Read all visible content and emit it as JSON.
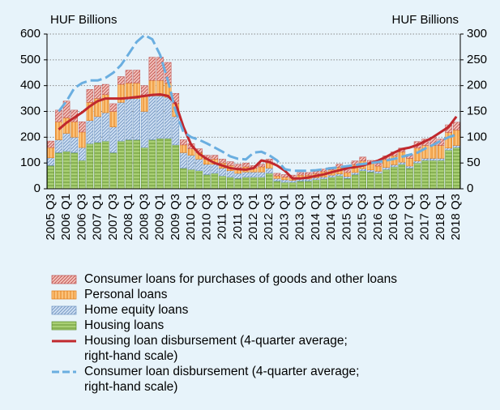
{
  "chart_data": {
    "type": "bar",
    "stacked": true,
    "ylabel": "HUF Billions",
    "y2label": "HUF Billions",
    "categories": [
      "2005 Q3",
      null,
      "2006 Q1",
      null,
      "2006 Q3",
      null,
      "2007 Q1",
      null,
      "2007 Q3",
      null,
      "2008 Q1",
      null,
      "2008 Q3",
      null,
      "2009 Q1",
      null,
      "2009 Q3",
      null,
      "2010 Q1",
      null,
      "2010 Q3",
      null,
      "2011 Q1",
      null,
      "2011 Q3",
      null,
      "2012 Q1",
      null,
      "2012 Q3",
      null,
      "2013 Q1",
      null,
      "2013 Q3",
      null,
      "2014 Q1",
      null,
      "2014 Q3",
      null,
      "2015 Q1",
      null,
      "2015 Q3",
      null,
      "2016 Q1",
      null,
      "2016 Q3",
      null,
      "2017 Q1",
      null,
      "2017 Q3",
      null,
      "2018 Q1",
      null,
      "2018 Q3"
    ],
    "ylim": [
      0,
      600
    ],
    "yticks": [
      0,
      100,
      200,
      300,
      400,
      500,
      600
    ],
    "y2lim": [
      0,
      300
    ],
    "y2ticks": [
      0,
      50,
      100,
      150,
      200,
      250,
      300
    ],
    "grid": true,
    "series": [
      {
        "name": "Housing loans",
        "color": "#a9cf74",
        "hatch": "horizontal",
        "hatch_color": "#5e8f2c",
        "values": [
          90,
          140,
          145,
          140,
          110,
          175,
          180,
          185,
          140,
          185,
          190,
          190,
          160,
          190,
          195,
          195,
          170,
          80,
          75,
          70,
          55,
          60,
          50,
          45,
          40,
          45,
          45,
          45,
          60,
          30,
          25,
          25,
          30,
          30,
          35,
          38,
          45,
          50,
          40,
          55,
          70,
          65,
          60,
          75,
          85,
          95,
          80,
          100,
          110,
          110,
          110,
          150,
          160
        ]
      },
      {
        "name": "Home equity loans",
        "color": "#cfe0f3",
        "hatch": "diagonal",
        "hatch_color": "#6f93c0",
        "values": [
          30,
          50,
          70,
          60,
          50,
          90,
          100,
          110,
          100,
          150,
          160,
          160,
          140,
          170,
          165,
          160,
          110,
          60,
          55,
          45,
          40,
          35,
          30,
          25,
          20,
          20,
          20,
          20,
          20,
          10,
          10,
          8,
          8,
          8,
          8,
          8,
          8,
          8,
          8,
          8,
          8,
          8,
          8,
          8,
          8,
          8,
          8,
          8,
          8,
          8,
          8,
          8,
          8
        ]
      },
      {
        "name": "Personal loans",
        "color": "#fbc27a",
        "hatch": "vertical",
        "hatch_color": "#e27a12",
        "values": [
          40,
          70,
          60,
          60,
          60,
          70,
          70,
          70,
          60,
          70,
          60,
          60,
          60,
          60,
          60,
          55,
          50,
          30,
          25,
          25,
          20,
          20,
          20,
          20,
          20,
          20,
          15,
          20,
          20,
          10,
          10,
          10,
          15,
          15,
          15,
          20,
          20,
          25,
          15,
          30,
          30,
          25,
          20,
          30,
          35,
          40,
          30,
          50,
          50,
          50,
          50,
          60,
          60
        ]
      },
      {
        "name": "Consumer loans for purchases of goods and other loans",
        "color": "#f2c4bd",
        "hatch": "diagonal",
        "hatch_color": "#c0504d",
        "values": [
          25,
          45,
          65,
          45,
          40,
          50,
          50,
          40,
          30,
          30,
          50,
          50,
          40,
          90,
          90,
          80,
          40,
          20,
          20,
          15,
          15,
          15,
          15,
          15,
          15,
          15,
          10,
          10,
          15,
          10,
          10,
          10,
          10,
          10,
          10,
          10,
          10,
          12,
          10,
          15,
          15,
          12,
          10,
          15,
          15,
          15,
          15,
          25,
          25,
          30,
          25,
          30,
          30
        ]
      },
      {
        "name": "Housing loan disbursement (4-quarter average; right-hand scale)",
        "type": "line",
        "axis": "y2",
        "color": "#c0282d",
        "dash": false,
        "values": [
          null,
          115,
          128,
          138,
          148,
          160,
          170,
          175,
          175,
          175,
          176,
          178,
          180,
          182,
          183,
          180,
          165,
          120,
          85,
          68,
          58,
          50,
          45,
          40,
          38,
          37,
          40,
          55,
          52,
          45,
          35,
          20,
          20,
          22,
          25,
          28,
          32,
          36,
          40,
          42,
          45,
          50,
          55,
          62,
          70,
          77,
          80,
          85,
          92,
          100,
          110,
          120,
          140
        ]
      },
      {
        "name": "Consumer loan disbursement (4-quarter average; right-hand scale)",
        "type": "line",
        "axis": "y2",
        "color": "#6aaee0",
        "dash": true,
        "values": [
          null,
          150,
          170,
          195,
          205,
          210,
          210,
          215,
          225,
          240,
          262,
          285,
          298,
          290,
          260,
          210,
          150,
          110,
          100,
          95,
          88,
          80,
          72,
          63,
          58,
          57,
          70,
          72,
          65,
          55,
          38,
          35,
          35,
          35,
          36,
          38,
          40,
          42,
          44,
          46,
          48,
          50,
          52,
          55,
          58,
          62,
          66,
          70,
          78,
          85,
          93,
          100,
          105
        ]
      }
    ]
  }
}
